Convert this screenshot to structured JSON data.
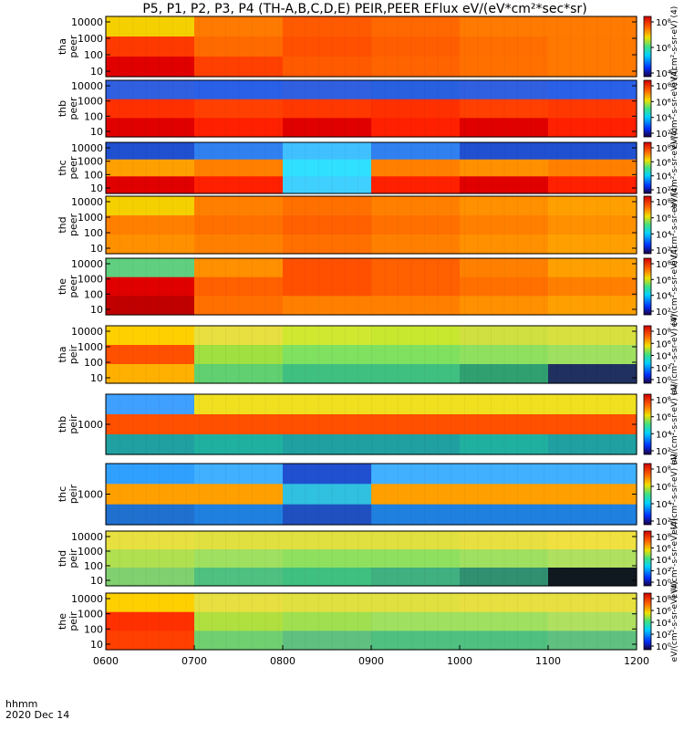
{
  "title": "P5, P1, P2, P3, P4 (TH-A,B,C,D,E) PEIR,PEER EFlux eV/(eV*cm²*sec*sr)",
  "footer": {
    "label1": "hhmm",
    "label2": "2020 Dec 14"
  },
  "chart_data": {
    "type": "heatmap",
    "x_ticks": [
      "0600",
      "0700",
      "0800",
      "0900",
      "1000",
      "1100",
      "1200"
    ],
    "x_range": [
      "0600",
      "1200"
    ],
    "panels": [
      {
        "probe": "tha",
        "species": "peer",
        "yticks": [
          "10",
          "100",
          "1000",
          "10000"
        ],
        "cb_ticks": [
          "10⁸",
          "10⁶",
          "10⁴"
        ],
        "cb_label": "eV/(cm²-s-sr-eV) (4)",
        "colors": [
          [
            "#f5d000",
            "#ff7a00",
            "#ff5a00",
            "#ff6800",
            "#ff7a00",
            "#ff7a00"
          ],
          [
            "#ff3a00",
            "#ff6a00",
            "#ff5000",
            "#ff5e00",
            "#ff6e00",
            "#ff7800"
          ],
          [
            "#e00000",
            "#ff4000",
            "#ff5a00",
            "#ff6400",
            "#ff7000",
            "#ff7800"
          ]
        ]
      },
      {
        "probe": "thb",
        "species": "peer",
        "yticks": [
          "10",
          "100",
          "1000",
          "10000"
        ],
        "cb_ticks": [
          "10⁸",
          "10⁶",
          "10⁴",
          "10²"
        ],
        "cb_label": "eV/(cm²-s-sr-eV) (4)",
        "colors": [
          [
            "#3060e0",
            "#2a60e8",
            "#3060e0",
            "#2860e0",
            "#3060e0",
            "#2a60e8"
          ],
          [
            "#ff3000",
            "#ff4000",
            "#ff3800",
            "#ff3000",
            "#ff4000",
            "#ff3800"
          ],
          [
            "#e00000",
            "#ff2000",
            "#e00000",
            "#ff2000",
            "#e00000",
            "#ff2000"
          ]
        ]
      },
      {
        "probe": "thc",
        "species": "peer",
        "yticks": [
          "10",
          "100",
          "1000",
          "10000"
        ],
        "cb_ticks": [
          "10⁸",
          "10⁶",
          "10⁴",
          "10²"
        ],
        "cb_label": "eV/(cm²-s-sr-eV) (4)",
        "colors": [
          [
            "#2050d0",
            "#3080f0",
            "#40c0ff",
            "#3080f0",
            "#2050d0",
            "#2050d0"
          ],
          [
            "#ffa000",
            "#ff8000",
            "#30e0ff",
            "#ff8000",
            "#ff9000",
            "#ff8000"
          ],
          [
            "#e00000",
            "#ff2000",
            "#40d0ff",
            "#ff2000",
            "#e00000",
            "#ff2000"
          ]
        ]
      },
      {
        "probe": "thd",
        "species": "peer",
        "yticks": [
          "10",
          "100",
          "1000",
          "10000"
        ],
        "cb_ticks": [
          "10⁸",
          "10⁶",
          "10⁴",
          "10²"
        ],
        "cb_label": "eV/(cm²-s-sr-eV) (4)",
        "colors": [
          [
            "#f5d000",
            "#ff8000",
            "#ff7000",
            "#ff8000",
            "#ff9000",
            "#ffa000"
          ],
          [
            "#ff8000",
            "#ff7000",
            "#ff6000",
            "#ff7000",
            "#ff8000",
            "#ff9000"
          ],
          [
            "#ff9000",
            "#ff8000",
            "#ff7000",
            "#ff8000",
            "#ff9000",
            "#ffa000"
          ]
        ]
      },
      {
        "probe": "the",
        "species": "peer",
        "yticks": [
          "10",
          "100",
          "1000",
          "10000"
        ],
        "cb_ticks": [
          "10⁸",
          "10⁶",
          "10⁴",
          "10²"
        ],
        "cb_label": "eV/(cm²-s-sr-eV) (4)",
        "colors": [
          [
            "#60d080",
            "#ff9000",
            "#ff5000",
            "#ff6000",
            "#ff8000",
            "#ffa000"
          ],
          [
            "#e00000",
            "#ff6000",
            "#ff5000",
            "#ff6000",
            "#ff7000",
            "#ff8000"
          ],
          [
            "#c00000",
            "#ff7000",
            "#ff8000",
            "#ff8000",
            "#ff9000",
            "#ffa000"
          ]
        ]
      },
      {
        "probe": "tha",
        "species": "peir",
        "yticks": [
          "10",
          "100",
          "1000",
          "10000"
        ],
        "cb_ticks": [
          "10⁸",
          "10⁶",
          "10⁴",
          "10²",
          "10⁰"
        ],
        "cb_label": "eV/(cm²-s-sr-eV) (4)",
        "colors": [
          [
            "#ffd000",
            "#e8e040",
            "#d0e830",
            "#c8e830",
            "#d0e040",
            "#d8e040"
          ],
          [
            "#ff5000",
            "#a0e040",
            "#80e060",
            "#80e060",
            "#90e060",
            "#a0e060"
          ],
          [
            "#ffb000",
            "#60d070",
            "#40c080",
            "#40c080",
            "#30a070",
            "#203060"
          ]
        ]
      },
      {
        "probe": "thb",
        "species": "peir",
        "yticks": [
          "1000"
        ],
        "cb_ticks": [
          "10⁸",
          "10⁶",
          "10⁴",
          "10²"
        ],
        "cb_label": "eV/(cm²-s-sr-eV) (4)",
        "colors": [
          [
            "#40a0ff",
            "#f0e020",
            "#f0e020",
            "#f0e020",
            "#f0e020",
            "#f0e020"
          ],
          [
            "#ff5000",
            "#ff5000",
            "#ff5000",
            "#ff5000",
            "#ff5000",
            "#ff5000"
          ],
          [
            "#20a0a0",
            "#20b0a0",
            "#20a0a0",
            "#20a0a0",
            "#20b0a0",
            "#20a0a0"
          ]
        ]
      },
      {
        "probe": "thc",
        "species": "peir",
        "yticks": [
          "1000"
        ],
        "cb_ticks": [
          "10⁸",
          "10⁶",
          "10⁴",
          "10²"
        ],
        "cb_label": "eV/(cm²-s-sr-eV) (4)",
        "colors": [
          [
            "#30a0ff",
            "#40b0ff",
            "#2050d0",
            "#40b0ff",
            "#40b0ff",
            "#40b0ff"
          ],
          [
            "#ffa000",
            "#ffa000",
            "#30c0e0",
            "#ffa000",
            "#ffa000",
            "#ffa000"
          ],
          [
            "#2070d0",
            "#2080e0",
            "#2050c0",
            "#2080e0",
            "#2080e0",
            "#2080e0"
          ]
        ]
      },
      {
        "probe": "thd",
        "species": "peir",
        "yticks": [
          "10",
          "100",
          "1000",
          "10000"
        ],
        "cb_ticks": [
          "10⁸",
          "10⁶",
          "10⁴",
          "10²",
          "10⁰"
        ],
        "cb_label": "eV/(cm²-s-sr-eV) (4)",
        "colors": [
          [
            "#e8e040",
            "#e0e040",
            "#e0e040",
            "#e0e040",
            "#e8e040",
            "#f0e040"
          ],
          [
            "#b0e050",
            "#a0e060",
            "#90e060",
            "#90e060",
            "#a0e060",
            "#b0e060"
          ],
          [
            "#80d070",
            "#50c080",
            "#40c080",
            "#40b080",
            "#309070",
            "#101820"
          ]
        ]
      },
      {
        "probe": "the",
        "species": "peir",
        "yticks": [
          "10",
          "100",
          "1000",
          "10000"
        ],
        "cb_ticks": [
          "10⁸",
          "10⁶",
          "10⁴",
          "10²",
          "10⁰"
        ],
        "cb_label": "eV/(cm²-s-sr-eV) (4)",
        "colors": [
          [
            "#ffd000",
            "#e8e040",
            "#e0e040",
            "#e0e040",
            "#e8e040",
            "#e8e040"
          ],
          [
            "#ff3000",
            "#b0e040",
            "#a0e050",
            "#a0e060",
            "#a0e060",
            "#b0e060"
          ],
          [
            "#ff4000",
            "#70d070",
            "#60c080",
            "#50c080",
            "#50c080",
            "#60c080"
          ]
        ]
      }
    ]
  }
}
